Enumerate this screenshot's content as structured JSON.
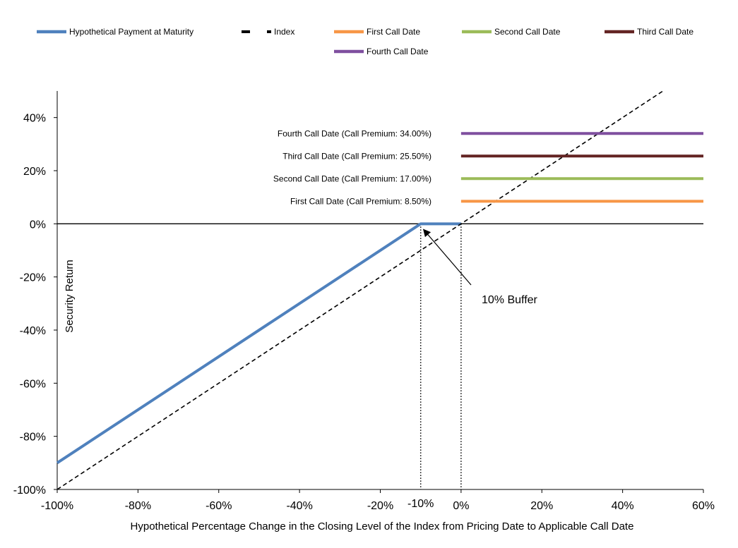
{
  "chart_data": {
    "type": "line",
    "title": "",
    "xlabel": "Hypothetical Percentage Change in the Closing Level of the Index from Pricing Date to Applicable Call Date",
    "ylabel": "Security Return",
    "xlim": [
      -100,
      60
    ],
    "ylim": [
      -100,
      50
    ],
    "x_ticks": [
      -100,
      -80,
      -60,
      -40,
      -20,
      0,
      20,
      40,
      60
    ],
    "x_tick_labels": [
      "-100%",
      "-80%",
      "-60%",
      "-40%",
      "-20%",
      "0%",
      "20%",
      "40%",
      "60%"
    ],
    "extra_x_tick": {
      "value": -10,
      "label": "-10%"
    },
    "y_ticks": [
      -100,
      -80,
      -60,
      -40,
      -20,
      0,
      20,
      40
    ],
    "y_tick_labels": [
      "-100%",
      "-80%",
      "-60%",
      "-40%",
      "-20%",
      "0%",
      "20%",
      "40%"
    ],
    "grid": false,
    "legend_position": "top",
    "series": [
      {
        "name": "Hypothetical Payment at Maturity",
        "color": "#4F81BD",
        "style": "solid",
        "x": [
          -100,
          -10,
          0
        ],
        "y": [
          -90,
          0,
          0
        ]
      },
      {
        "name": "Index",
        "color": "#000000",
        "style": "dashed",
        "x": [
          -100,
          50
        ],
        "y": [
          -100,
          50
        ]
      },
      {
        "name": "First Call Date",
        "color": "#F79646",
        "style": "solid",
        "x": [
          0,
          60
        ],
        "y": [
          8.5,
          8.5
        ]
      },
      {
        "name": "Second Call Date",
        "color": "#9BBB59",
        "style": "solid",
        "x": [
          0,
          60
        ],
        "y": [
          17,
          17
        ]
      },
      {
        "name": "Third Call Date",
        "color": "#632423",
        "style": "solid",
        "x": [
          0,
          60
        ],
        "y": [
          25.5,
          25.5
        ]
      },
      {
        "name": "Fourth Call Date",
        "color": "#7F4F9F",
        "style": "solid",
        "x": [
          0,
          60
        ],
        "y": [
          34,
          34
        ]
      }
    ],
    "series_labels": [
      {
        "text": "Fourth Call Date (Call Premium: 34.00%)",
        "y": 34
      },
      {
        "text": "Third Call Date (Call Premium: 25.50%)",
        "y": 25.5
      },
      {
        "text": "Second Call Date (Call Premium: 17.00%)",
        "y": 17
      },
      {
        "text": "First Call Date (Call Premium: 8.50%)",
        "y": 8.5
      }
    ],
    "vertical_reference_lines": [
      -10,
      0
    ],
    "annotations": [
      {
        "text": "10% Buffer",
        "points_to": {
          "x": -10,
          "y": 0
        }
      }
    ]
  }
}
